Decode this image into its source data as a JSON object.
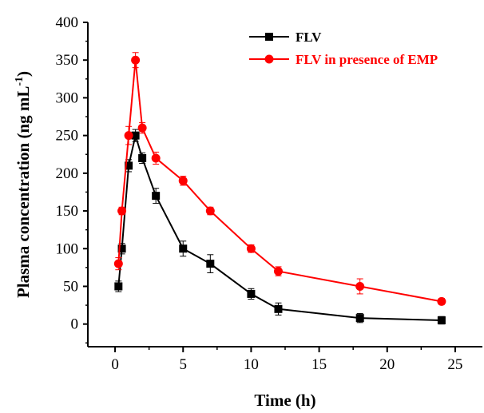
{
  "chart_data": {
    "type": "line",
    "xlabel": "Time (h)",
    "ylabel": "Plasma concentration (ng mL",
    "ylabel_sup": "-1",
    "ylabel_suffix": ")",
    "xlim": [
      -2,
      27
    ],
    "ylim": [
      -30,
      400
    ],
    "xticks": [
      0,
      5,
      10,
      15,
      20,
      25
    ],
    "yticks": [
      0,
      50,
      100,
      150,
      200,
      250,
      300,
      350,
      400
    ],
    "grid": false,
    "legend_position": "top-right",
    "series": [
      {
        "name": "FLV",
        "color": "#000000",
        "marker": "square",
        "x": [
          0.25,
          0.5,
          1,
          1.5,
          2,
          3,
          5,
          7,
          10,
          12,
          18,
          24
        ],
        "y": [
          50,
          100,
          210,
          250,
          220,
          170,
          100,
          80,
          40,
          20,
          8,
          5
        ],
        "err": [
          7,
          7,
          8,
          8,
          7,
          10,
          10,
          12,
          7,
          8,
          6,
          5
        ]
      },
      {
        "name": "FLV in presence of EMP",
        "color": "#ff0000",
        "marker": "circle",
        "x": [
          0.25,
          0.5,
          1,
          1.5,
          2,
          3,
          5,
          7,
          10,
          12,
          18,
          24
        ],
        "y": [
          80,
          150,
          250,
          350,
          260,
          220,
          190,
          150,
          100,
          70,
          50,
          30
        ],
        "err": [
          8,
          5,
          12,
          10,
          7,
          8,
          6,
          5,
          5,
          6,
          10,
          4
        ]
      }
    ]
  }
}
